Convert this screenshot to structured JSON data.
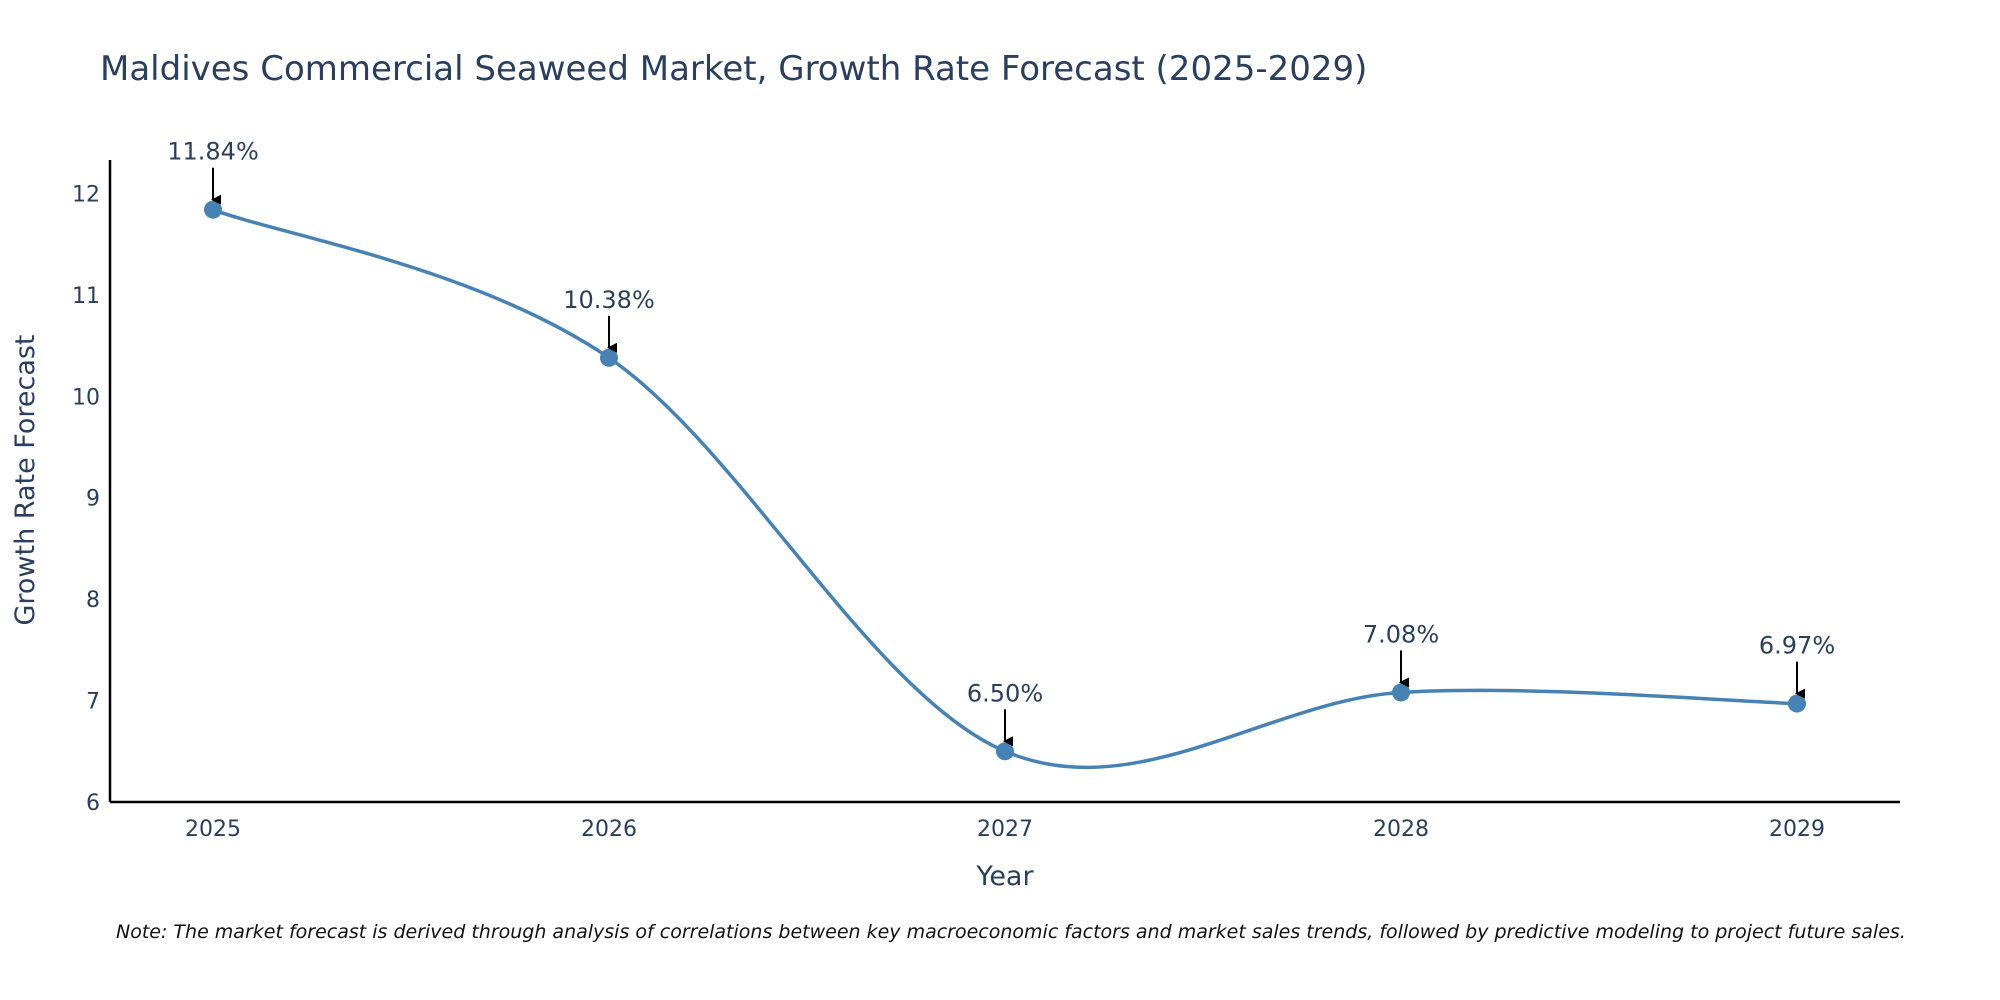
{
  "chart_data": {
    "type": "line",
    "title": "Maldives Commercial Seaweed Market, Growth Rate Forecast (2025-2029)",
    "xlabel": "Year",
    "ylabel": "Growth Rate Forecast",
    "categories": [
      "2025",
      "2026",
      "2027",
      "2028",
      "2029"
    ],
    "series": [
      {
        "name": "Growth Rate Forecast",
        "values": [
          11.84,
          10.38,
          6.5,
          7.08,
          6.97
        ]
      }
    ],
    "data_labels": [
      "11.84%",
      "10.38%",
      "6.50%",
      "7.08%",
      "6.97%"
    ],
    "yticks": [
      6,
      7,
      8,
      9,
      10,
      11,
      12
    ],
    "ylim": [
      6,
      12.33
    ],
    "line_color": "#4682b4",
    "marker_color": "#4682b4",
    "grid": false,
    "note": "Note: The market forecast is derived through analysis of correlations between key macroeconomic factors and market sales trends, followed by predictive modeling to project future sales."
  }
}
